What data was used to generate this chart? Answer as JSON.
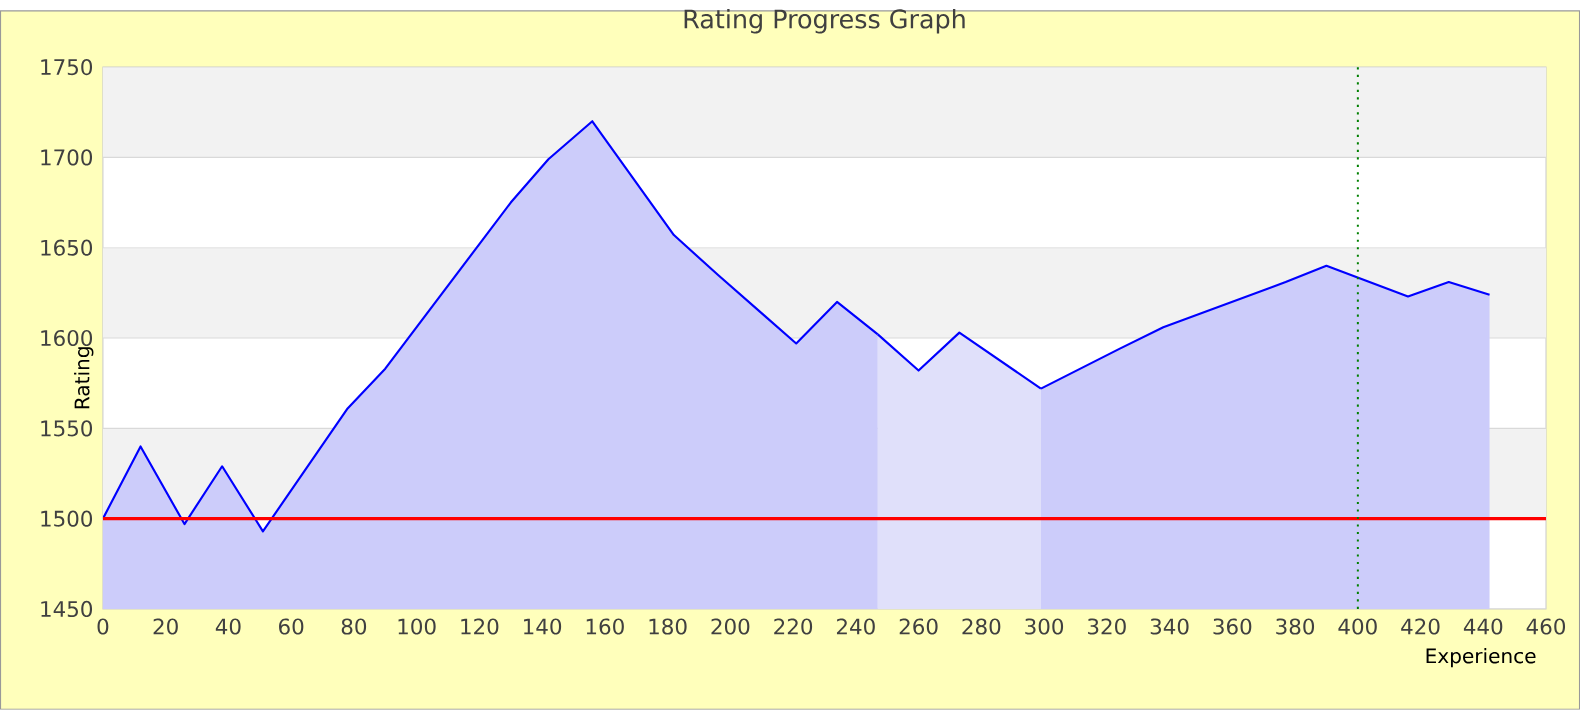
{
  "chart_data": {
    "type": "area",
    "title": "Rating Progress Graph",
    "xlabel": "Experience",
    "ylabel": "Rating",
    "series": [
      {
        "color": "#ccccfa",
        "x": [
          0,
          12,
          26,
          38,
          51,
          78,
          90,
          130,
          142,
          156,
          182,
          196,
          221,
          234,
          247
        ],
        "values": [
          1500,
          1540,
          1497,
          1529,
          1493,
          1561,
          1583,
          1675,
          1699,
          1720,
          1657,
          1635,
          1597,
          1620,
          1602
        ]
      },
      {
        "color": "#e0e0fa",
        "x": [
          247,
          260,
          273,
          299
        ],
        "values": [
          1602,
          1582,
          1603,
          1572
        ]
      },
      {
        "color": "#ccccfa",
        "x": [
          299,
          324,
          338,
          377,
          390,
          416,
          429,
          442
        ],
        "values": [
          1572,
          1594,
          1606,
          1631,
          1640,
          1623,
          1631,
          1624
        ]
      }
    ],
    "xlim": [
      0,
      460
    ],
    "ylim": [
      1450,
      1750
    ],
    "xticks": [
      0,
      20,
      40,
      60,
      80,
      100,
      120,
      140,
      160,
      180,
      200,
      220,
      240,
      260,
      280,
      300,
      320,
      340,
      360,
      380,
      400,
      420,
      440,
      460
    ],
    "yticks": [
      1450,
      1500,
      1550,
      1600,
      1650,
      1700,
      1750
    ],
    "grid": "y",
    "ref_lines": [
      {
        "axis": "y",
        "value": 1500,
        "color": "#ff0000",
        "line_style": "solid"
      },
      {
        "axis": "x",
        "value": 400,
        "color": "#008000",
        "line_style": "dotted"
      }
    ]
  }
}
